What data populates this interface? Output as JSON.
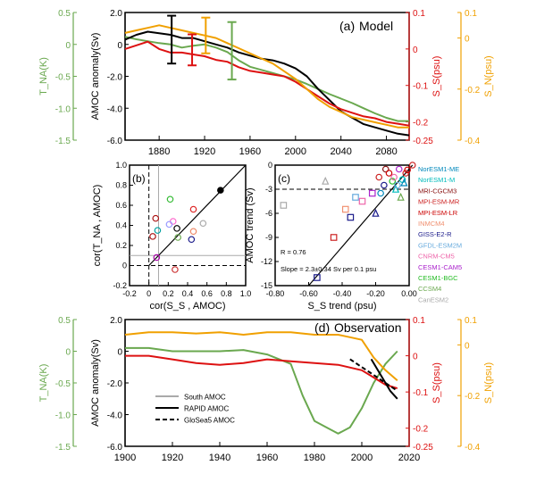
{
  "chart_data": [
    {
      "id": "a",
      "type": "line",
      "panel_label": "(a)",
      "title": "Model",
      "x_ticks": [
        "1880",
        "1920",
        "1960",
        "2000",
        "2040",
        "2080"
      ],
      "xlim": [
        1850,
        2100
      ],
      "axes": {
        "left_outer": {
          "label": "T_NA(K)",
          "color": "#6aa84f",
          "ticks": [
            "0.5",
            "0",
            "-0.5",
            "-1.0",
            "-1.5"
          ],
          "lim": [
            -1.5,
            0.5
          ]
        },
        "left_inner": {
          "label": "AMOC anomaly(Sv)",
          "color": "#000000",
          "ticks": [
            "2.0",
            "0",
            "-2.0",
            "-4.0",
            "-6.0"
          ],
          "lim": [
            -6,
            2
          ]
        },
        "right_inner": {
          "label": "S_S(psu)",
          "color": "#dd1111",
          "ticks": [
            "0.1",
            "0",
            "-0.1",
            "-0.2",
            "-0.25"
          ],
          "lim": [
            -0.25,
            0.1
          ]
        },
        "right_outer": {
          "label": "S_N(psu)",
          "color": "#f0a000",
          "ticks": [
            "0.1",
            "0",
            "-0.2",
            "-0.4"
          ],
          "lim": [
            -0.4,
            0.1
          ]
        }
      },
      "series": [
        {
          "color": "#6aa84f",
          "axis": "left_outer",
          "x": [
            1850,
            1860,
            1870,
            1880,
            1890,
            1900,
            1910,
            1920,
            1930,
            1940,
            1950,
            1960,
            1970,
            1980,
            1990,
            2000,
            2010,
            2020,
            2030,
            2040,
            2050,
            2060,
            2070,
            2080,
            2090,
            2100
          ],
          "values": [
            0.12,
            0.08,
            0.05,
            0.02,
            0.0,
            -0.05,
            -0.02,
            0.0,
            -0.05,
            -0.12,
            -0.25,
            -0.35,
            -0.4,
            -0.45,
            -0.5,
            -0.55,
            -0.62,
            -0.7,
            -0.78,
            -0.85,
            -0.92,
            -1.0,
            -1.08,
            -1.15,
            -1.2,
            -1.2
          ]
        },
        {
          "color": "#000000",
          "axis": "left_inner",
          "x": [
            1850,
            1860,
            1870,
            1880,
            1890,
            1900,
            1910,
            1920,
            1930,
            1940,
            1950,
            1960,
            1970,
            1980,
            1990,
            2000,
            2010,
            2020,
            2030,
            2040,
            2050,
            2060,
            2070,
            2080,
            2090,
            2100
          ],
          "values": [
            0.3,
            0.6,
            0.8,
            0.7,
            0.6,
            0.4,
            0.4,
            0.2,
            0.0,
            -0.2,
            -0.5,
            -0.7,
            -0.9,
            -1.0,
            -1.2,
            -1.5,
            -2.0,
            -2.8,
            -3.5,
            -4.2,
            -4.6,
            -5.0,
            -5.2,
            -5.4,
            -5.6,
            -5.7
          ]
        },
        {
          "color": "#dd1111",
          "axis": "right_inner",
          "x": [
            1850,
            1860,
            1870,
            1880,
            1890,
            1900,
            1910,
            1920,
            1930,
            1940,
            1950,
            1960,
            1970,
            1980,
            1990,
            2000,
            2010,
            2020,
            2030,
            2040,
            2050,
            2060,
            2070,
            2080,
            2090,
            2100
          ],
          "values": [
            0.0,
            0.01,
            0.02,
            0.0,
            -0.01,
            -0.01,
            -0.015,
            -0.02,
            -0.03,
            -0.035,
            -0.05,
            -0.06,
            -0.065,
            -0.07,
            -0.075,
            -0.09,
            -0.11,
            -0.13,
            -0.15,
            -0.165,
            -0.175,
            -0.185,
            -0.19,
            -0.2,
            -0.205,
            -0.21
          ]
        },
        {
          "color": "#f0a000",
          "axis": "right_outer",
          "x": [
            1850,
            1860,
            1870,
            1880,
            1890,
            1900,
            1910,
            1920,
            1930,
            1940,
            1950,
            1960,
            1970,
            1980,
            1990,
            2000,
            2010,
            2020,
            2030,
            2040,
            2050,
            2060,
            2070,
            2080,
            2090,
            2100
          ],
          "values": [
            0.02,
            0.03,
            0.04,
            0.05,
            0.04,
            0.03,
            0.02,
            0.01,
            0.0,
            -0.02,
            -0.04,
            -0.06,
            -0.08,
            -0.1,
            -0.13,
            -0.16,
            -0.2,
            -0.24,
            -0.27,
            -0.29,
            -0.31,
            -0.32,
            -0.33,
            -0.34,
            -0.35,
            -0.35
          ]
        }
      ],
      "error_bars": [
        {
          "color": "#000000",
          "axis": "left_inner",
          "x": 1891,
          "low": -1.2,
          "high": 1.8
        },
        {
          "color": "#dd1111",
          "axis": "right_inner",
          "x": 1909,
          "low": -0.045,
          "high": 0.04
        },
        {
          "color": "#f0a000",
          "axis": "right_outer",
          "x": 1921,
          "low": -0.06,
          "high": 0.08
        },
        {
          "color": "#6aa84f",
          "axis": "left_outer",
          "x": 1944,
          "low": -0.55,
          "high": 0.35
        }
      ]
    },
    {
      "id": "b",
      "type": "scatter",
      "panel_label": "(b)",
      "xlabel": "cor(S_S , AMOC)",
      "ylabel": "cor(T_NA , AMOC)",
      "xlim": [
        -0.2,
        1.0
      ],
      "ylim": [
        -0.2,
        1.0
      ],
      "x_ticks": [
        "-0.2",
        "0",
        "0.2",
        "0.4",
        "0.6",
        "0.8",
        "1.0"
      ],
      "y_ticks": [
        "-0.2",
        "0",
        "0.2",
        "0.4",
        "0.6",
        "0.8",
        "1.0"
      ],
      "ref_lines": {
        "dashed_x": 0.0,
        "dashed_y": 0.0,
        "gray_x": 0.1,
        "gray_y": 0.1
      },
      "points": [
        {
          "x": 0.74,
          "y": 0.75,
          "color": "#000000",
          "filled": true
        },
        {
          "x": 0.07,
          "y": 0.47,
          "color": "#aa1111"
        },
        {
          "x": 0.04,
          "y": 0.29,
          "color": "#aa1111"
        },
        {
          "x": 0.09,
          "y": 0.35,
          "color": "#00a0a0"
        },
        {
          "x": 0.08,
          "y": 0.08,
          "color": "#aa00aa"
        },
        {
          "x": 0.22,
          "y": 0.66,
          "color": "#33bb33"
        },
        {
          "x": 0.25,
          "y": 0.44,
          "color": "#ff66cc"
        },
        {
          "x": 0.29,
          "y": 0.37,
          "color": "#000000"
        },
        {
          "x": 0.3,
          "y": 0.28,
          "color": "#6aa84f"
        },
        {
          "x": 0.44,
          "y": 0.26,
          "color": "#1a1a8a"
        },
        {
          "x": 0.46,
          "y": 0.56,
          "color": "#dd2222"
        },
        {
          "x": 0.46,
          "y": 0.34,
          "color": "#ee8866"
        },
        {
          "x": 0.56,
          "y": 0.42,
          "color": "#aaaaaa"
        },
        {
          "x": 0.21,
          "y": 0.41,
          "color": "#9999ff"
        },
        {
          "x": 0.27,
          "y": -0.04,
          "color": "#cc3333"
        }
      ]
    },
    {
      "id": "c",
      "type": "scatter",
      "panel_label": "(c)",
      "xlabel": "S_S trend (psu)",
      "ylabel": "AMOC trend (Sv)",
      "xlim": [
        -0.8,
        0.0
      ],
      "ylim": [
        -15,
        0
      ],
      "x_ticks": [
        "-0.80",
        "-0.60",
        "-0.40",
        "-0.20",
        "0.00"
      ],
      "y_ticks": [
        "0",
        "-3",
        "-6",
        "-9",
        "-12",
        "-15"
      ],
      "annotations": [
        "R = 0.76",
        "Slope = 2.3±0.34 Sv per 0.1 psu"
      ],
      "legend": [
        {
          "label": "NorESM1-ME",
          "color": "#0088bb"
        },
        {
          "label": "NorESM1-M",
          "color": "#00bbbb"
        },
        {
          "label": "MRI-CGCM3",
          "color": "#881111"
        },
        {
          "label": "MPI-ESM-MR",
          "color": "#cc2222"
        },
        {
          "label": "MPI-ESM-LR",
          "color": "#cc0000"
        },
        {
          "label": "INMCM4",
          "color": "#f09070"
        },
        {
          "label": "GISS-E2-R",
          "color": "#1a1a8a"
        },
        {
          "label": "GFDL-ESM2M",
          "color": "#66aadd"
        },
        {
          "label": "CNRM-CM5",
          "color": "#ee66aa"
        },
        {
          "label": "CESM1-CAM5",
          "color": "#aa22cc"
        },
        {
          "label": "CESM1-BGC",
          "color": "#22bb22"
        },
        {
          "label": "CCSM4",
          "color": "#6aa84f"
        },
        {
          "label": "CanESM2",
          "color": "#aaaaaa"
        }
      ],
      "points": [
        {
          "x": -0.75,
          "y": -5.0,
          "color": "#aaaaaa",
          "shape": "square"
        },
        {
          "x": -0.55,
          "y": -14.0,
          "color": "#1a1a8a",
          "shape": "square"
        },
        {
          "x": -0.5,
          "y": -2.0,
          "color": "#aaaaaa",
          "shape": "triangle"
        },
        {
          "x": -0.45,
          "y": -9.0,
          "color": "#cc2222",
          "shape": "square"
        },
        {
          "x": -0.38,
          "y": -5.5,
          "color": "#f09070",
          "shape": "square"
        },
        {
          "x": -0.35,
          "y": -6.5,
          "color": "#1a1a8a",
          "shape": "square"
        },
        {
          "x": -0.32,
          "y": -4.0,
          "color": "#66aadd",
          "shape": "square"
        },
        {
          "x": -0.28,
          "y": -4.5,
          "color": "#ee66aa",
          "shape": "square"
        },
        {
          "x": -0.22,
          "y": -3.5,
          "color": "#aa22cc",
          "shape": "square"
        },
        {
          "x": -0.2,
          "y": -6.0,
          "color": "#1a1a8a",
          "shape": "triangle"
        },
        {
          "x": -0.18,
          "y": -1.5,
          "color": "#cc2222",
          "shape": "circle"
        },
        {
          "x": -0.17,
          "y": -3.5,
          "color": "#0088bb",
          "shape": "circle"
        },
        {
          "x": -0.15,
          "y": -2.5,
          "color": "#1a1a8a",
          "shape": "circle"
        },
        {
          "x": -0.14,
          "y": -0.5,
          "color": "#881111",
          "shape": "circle"
        },
        {
          "x": -0.12,
          "y": -1.0,
          "color": "#cc0000",
          "shape": "circle"
        },
        {
          "x": -0.1,
          "y": -2.0,
          "color": "#22bb22",
          "shape": "circle"
        },
        {
          "x": -0.09,
          "y": -1.5,
          "color": "#ee66aa",
          "shape": "circle"
        },
        {
          "x": -0.08,
          "y": -3.0,
          "color": "#00bbbb",
          "shape": "triangle"
        },
        {
          "x": -0.07,
          "y": -2.5,
          "color": "#66aadd",
          "shape": "circle"
        },
        {
          "x": -0.06,
          "y": -0.5,
          "color": "#aa22cc",
          "shape": "circle"
        },
        {
          "x": -0.05,
          "y": -4.0,
          "color": "#6aa84f",
          "shape": "triangle"
        },
        {
          "x": -0.04,
          "y": -1.8,
          "color": "#00bbbb",
          "shape": "circle"
        },
        {
          "x": -0.03,
          "y": -2.2,
          "color": "#0088bb",
          "shape": "triangle"
        },
        {
          "x": -0.02,
          "y": -1.0,
          "color": "#cc2222",
          "shape": "circle"
        },
        {
          "x": -0.01,
          "y": -0.6,
          "color": "#cc0000",
          "shape": "circle"
        },
        {
          "x": 0.02,
          "y": 0.0,
          "color": "#cc2222",
          "shape": "circle"
        }
      ]
    },
    {
      "id": "d",
      "type": "line",
      "panel_label": "(d)",
      "title": "Observation",
      "x_ticks": [
        "1900",
        "1920",
        "1940",
        "1960",
        "1980",
        "2000",
        "2020"
      ],
      "xlim": [
        1900,
        2020
      ],
      "axes": {
        "left_outer": {
          "label": "T_NA(K)",
          "color": "#6aa84f",
          "ticks": [
            "0.5",
            "0",
            "-0.5",
            "-1.0",
            "-1.5"
          ],
          "lim": [
            -1.5,
            0.5
          ]
        },
        "left_inner": {
          "label": "AMOC anomaly(Sv)",
          "color": "#000000",
          "ticks": [
            "2.0",
            "0",
            "-2.0",
            "-4.0",
            "-6.0"
          ],
          "lim": [
            -6,
            2
          ]
        },
        "right_inner": {
          "label": "S_S(psu)",
          "color": "#dd1111",
          "ticks": [
            "0.1",
            "0",
            "-0.1",
            "-0.2",
            "-0.25"
          ],
          "lim": [
            -0.25,
            0.1
          ]
        },
        "right_outer": {
          "label": "S_N(psu)",
          "color": "#f0a000",
          "ticks": [
            "0.1",
            "0",
            "-0.2",
            "-0.4"
          ],
          "lim": [
            -0.4,
            0.1
          ]
        }
      },
      "legend": [
        {
          "label": "South AMOC",
          "color": "#aaaaaa",
          "style": "solid"
        },
        {
          "label": "RAPID AMOC",
          "color": "#000000",
          "style": "solid"
        },
        {
          "label": "GloSea5 AMOC",
          "color": "#000000",
          "style": "dashed"
        }
      ],
      "series": [
        {
          "color": "#6aa84f",
          "axis": "left_outer",
          "x": [
            1900,
            1910,
            1920,
            1930,
            1940,
            1950,
            1960,
            1970,
            1975,
            1980,
            1985,
            1990,
            1995,
            2000,
            2005,
            2010,
            2015
          ],
          "values": [
            0.05,
            0.05,
            0.0,
            0.0,
            0.0,
            0.02,
            -0.05,
            -0.2,
            -0.7,
            -1.1,
            -1.2,
            -1.3,
            -1.2,
            -0.9,
            -0.5,
            -0.2,
            0.0
          ]
        },
        {
          "color": "#dd1111",
          "axis": "right_inner",
          "x": [
            1900,
            1910,
            1920,
            1930,
            1940,
            1950,
            1960,
            1970,
            1980,
            1990,
            2000,
            2005,
            2010,
            2015
          ],
          "values": [
            0.0,
            0.0,
            -0.01,
            -0.02,
            -0.025,
            -0.02,
            -0.01,
            -0.015,
            -0.02,
            -0.025,
            -0.04,
            -0.06,
            -0.08,
            -0.09
          ]
        },
        {
          "color": "#f0a000",
          "axis": "right_outer",
          "x": [
            1900,
            1910,
            1920,
            1930,
            1940,
            1950,
            1960,
            1970,
            1980,
            1990,
            2000,
            2005,
            2010,
            2015
          ],
          "values": [
            0.04,
            0.05,
            0.05,
            0.045,
            0.05,
            0.04,
            0.05,
            0.05,
            0.04,
            0.04,
            0.02,
            -0.05,
            -0.1,
            -0.14
          ]
        },
        {
          "color": "#000000",
          "axis": "left_inner",
          "style": "solid",
          "x": [
            2004,
            2006,
            2008,
            2010,
            2012,
            2015
          ],
          "values": [
            -0.5,
            -1.0,
            -1.5,
            -2.0,
            -2.5,
            -3.0
          ]
        },
        {
          "color": "#000000",
          "axis": "left_inner",
          "style": "dashed",
          "x": [
            1995,
            2000,
            2005,
            2010,
            2015
          ],
          "values": [
            -0.5,
            -1.0,
            -1.5,
            -2.0,
            -2.5
          ]
        }
      ]
    }
  ]
}
